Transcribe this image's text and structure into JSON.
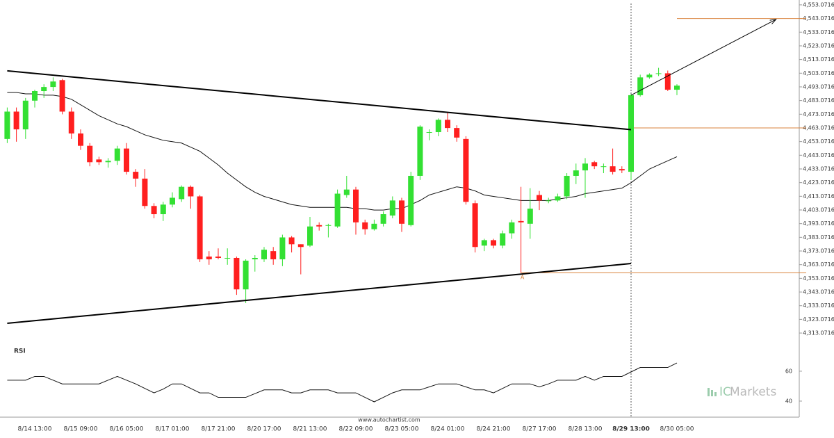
{
  "chart_data": {
    "type": "candlestick",
    "categories": [
      null,
      null,
      null,
      "8/14 13:00",
      null,
      null,
      null,
      null,
      "8/15 09:00",
      null,
      null,
      null,
      null,
      "8/16 05:00",
      null,
      null,
      null,
      null,
      "8/17 01:00",
      null,
      null,
      null,
      null,
      "8/17 21:00",
      null,
      null,
      null,
      null,
      "8/20 17:00",
      null,
      null,
      null,
      null,
      "8/21 13:00",
      null,
      null,
      null,
      null,
      "8/22 09:00",
      null,
      null,
      null,
      null,
      "8/23 05:00",
      null,
      null,
      null,
      null,
      "8/24 01:00",
      null,
      null,
      null,
      null,
      "8/24 21:00",
      null,
      null,
      null,
      null,
      "8/27 17:00",
      null,
      null,
      null,
      null,
      "8/28 13:00",
      null,
      null,
      null,
      null,
      "8/29 13:00",
      null,
      null,
      null,
      null,
      "8/30 05:00"
    ],
    "highlight_category": 68,
    "open": [
      4455,
      4475,
      4462,
      4483,
      4490,
      4493,
      4498,
      4475,
      4459,
      4450,
      4440,
      4438,
      4439,
      4448,
      4431,
      4426,
      4406,
      4400,
      4407,
      4411,
      4420,
      4413,
      4369,
      4369,
      4368,
      4368,
      4345,
      4367,
      4367,
      4373,
      4367,
      4383,
      4378,
      4377,
      4392,
      4392,
      4391,
      4414,
      4418,
      4394,
      4389,
      4393,
      4399,
      4410,
      4392,
      4428,
      4460,
      4460,
      4469,
      4463,
      4455,
      4408,
      4377,
      4381,
      4377,
      4386,
      4395,
      4393,
      4414,
      4410,
      4410,
      4413,
      4428,
      4432,
      4438,
      4435,
      4435,
      4433,
      4431,
      4487,
      4500,
      4503,
      4503,
      4491
    ],
    "high": [
      4478,
      4478,
      4485,
      4491,
      4495,
      4500,
      4499,
      4478,
      4462,
      4452,
      4442,
      4441,
      4450,
      4452,
      4433,
      4433,
      4408,
      4409,
      4416,
      4421,
      4421,
      4414,
      4373,
      4375,
      4375,
      4369,
      4367,
      4370,
      4376,
      4376,
      4385,
      4384,
      4378,
      4398,
      4394,
      4393,
      4418,
      4428,
      4420,
      4396,
      4396,
      4402,
      4413,
      4412,
      4431,
      4465,
      4462,
      4470,
      4474,
      4465,
      4457,
      4410,
      4382,
      4382,
      4388,
      4396,
      4420,
      4419,
      4417,
      4412,
      4415,
      4430,
      4437,
      4441,
      4439,
      4437,
      4448,
      4435,
      4488,
      4502,
      4503,
      4507,
      4505,
      4495
    ],
    "low": [
      4452,
      4453,
      4455,
      4478,
      4485,
      4490,
      4473,
      4455,
      4447,
      4435,
      4436,
      4434,
      4436,
      4429,
      4420,
      4404,
      4397,
      4395,
      4405,
      4409,
      4404,
      4365,
      4363,
      4367,
      4363,
      4341,
      4335,
      4358,
      4365,
      4363,
      4362,
      4372,
      4356,
      4376,
      4388,
      4383,
      4390,
      4412,
      4385,
      4385,
      4388,
      4391,
      4397,
      4387,
      4391,
      4425,
      4454,
      4457,
      4460,
      4453,
      4407,
      4372,
      4373,
      4375,
      4375,
      4382,
      4357,
      4382,
      4403,
      4408,
      4409,
      4411,
      4422,
      4412,
      4433,
      4430,
      4429,
      4430,
      4425,
      4486,
      4499,
      4501,
      4490,
      4487
    ],
    "close": [
      4475,
      4462,
      4483,
      4490,
      4493,
      4497,
      4475,
      4459,
      4450,
      4438,
      4438,
      4439,
      4448,
      4431,
      4426,
      4406,
      4400,
      4407,
      4412,
      4420,
      4413,
      4367,
      4367,
      4368,
      4368,
      4345,
      4366,
      4368,
      4374,
      4367,
      4383,
      4378,
      4376,
      4391,
      4391,
      4392,
      4415,
      4418,
      4394,
      4389,
      4393,
      4400,
      4410,
      4393,
      4428,
      4464,
      4460,
      4469,
      4463,
      4456,
      4409,
      4376,
      4381,
      4377,
      4386,
      4394,
      4394,
      4404,
      4410,
      4410,
      4413,
      4428,
      4432,
      4437,
      4435,
      4435,
      4431,
      4432,
      4487,
      4500,
      4502,
      4503,
      4491,
      4494
    ],
    "up_color": "#33e033",
    "down_color": "#ff1f1f",
    "ma": [
      4489,
      4489,
      4488,
      4488,
      4487,
      4487,
      4486,
      4484,
      4480,
      4476,
      4472,
      4469,
      4466,
      4464,
      4461,
      4458,
      4456,
      4454,
      4453,
      4452,
      4449,
      4446,
      4441,
      4436,
      4430,
      4425,
      4420,
      4416,
      4413,
      4411,
      4409,
      4407,
      4406,
      4405,
      4405,
      4405,
      4405,
      4405,
      4404,
      4404,
      4403,
      4403,
      4404,
      4404,
      4407,
      4410,
      4414,
      4416,
      4418,
      4420,
      4419,
      4417,
      4414,
      4413,
      4412,
      4411,
      4410,
      4410,
      4410,
      4410,
      4411,
      4412,
      4413,
      4415,
      4416,
      4417,
      4418,
      4419,
      4423,
      4428,
      4433,
      4436,
      4439,
      4442
    ],
    "ma_color": "#111111",
    "ylim": [
      4307.5,
      4556.6
    ],
    "yticks": [
      {
        "value": 4313.0716,
        "label": "4,313.0716"
      },
      {
        "value": 4323.0716,
        "label": "4,323.0716"
      },
      {
        "value": 4333.0716,
        "label": "4,333.0716"
      },
      {
        "value": 4343.0716,
        "label": "4,343.0716"
      },
      {
        "value": 4353.0716,
        "label": "4,353.0716"
      },
      {
        "value": 4363.0716,
        "label": "4,363.0716"
      },
      {
        "value": 4373.0716,
        "label": "4,373.0716"
      },
      {
        "value": 4383.0716,
        "label": "4,383.0716"
      },
      {
        "value": 4393.0716,
        "label": "4,393.0716"
      },
      {
        "value": 4403.0716,
        "label": "4,403.0716"
      },
      {
        "value": 4413.0716,
        "label": "4,413.0716"
      },
      {
        "value": 4423.0716,
        "label": "4,423.0716"
      },
      {
        "value": 4433.0716,
        "label": "4,433.0716"
      },
      {
        "value": 4443.0716,
        "label": "4,443.0716"
      },
      {
        "value": 4453.0716,
        "label": "4,453.0716"
      },
      {
        "value": 4463.0716,
        "label": "4,463.0716"
      },
      {
        "value": 4473.0716,
        "label": "4,473.0716"
      },
      {
        "value": 4483.0716,
        "label": "4,483.0716"
      },
      {
        "value": 4493.0716,
        "label": "4,493.0716"
      },
      {
        "value": 4503.0716,
        "label": "4,503.0716"
      },
      {
        "value": 4513.0716,
        "label": "4,513.0716"
      },
      {
        "value": 4523.0716,
        "label": "4,523.0716"
      },
      {
        "value": 4533.0716,
        "label": "4,533.0716"
      },
      {
        "value": 4543.0716,
        "label": "4,543.0716"
      },
      {
        "value": 4553.0716,
        "label": "4,553.0716"
      }
    ],
    "trendlines": [
      {
        "x": [
          0,
          68
        ],
        "values": [
          4504.8,
          4461.8
        ],
        "color": "#000000"
      },
      {
        "x": [
          0,
          68
        ],
        "values": [
          4320.2,
          4363.9
        ],
        "color": "#000000"
      }
    ],
    "arrow": {
      "x": [
        68,
        83.8
      ],
      "values": [
        4487,
        4542.4
      ],
      "color": "#000000"
    },
    "levels": [
      {
        "from": 73,
        "value": 4543.0716,
        "color": "#d9823b"
      },
      {
        "from": 68,
        "value": 4463.0716,
        "color": "#d9823b"
      },
      {
        "from": 56,
        "value": 4357.2,
        "color": "#d9823b"
      }
    ],
    "annotation": {
      "text": "A",
      "x": 56,
      "value": 4357.2
    },
    "rsi": {
      "label": "RSI",
      "values": [
        54,
        54,
        54,
        56.5,
        56.5,
        54,
        51.5,
        51.5,
        51.5,
        51.5,
        51.5,
        54,
        56.5,
        54,
        51.5,
        48.5,
        45.5,
        48,
        51.5,
        51.5,
        48.5,
        45.5,
        45.5,
        42.5,
        42.5,
        42.5,
        42.5,
        45,
        47.5,
        47.5,
        47.5,
        45.5,
        45.5,
        47.5,
        47.5,
        47.5,
        45.5,
        45.5,
        45.5,
        42.5,
        39.5,
        42.5,
        45.5,
        47.5,
        47.5,
        47.5,
        49.5,
        51.5,
        51.5,
        51.5,
        49.5,
        47.5,
        47.5,
        45.5,
        48.5,
        51.5,
        51.5,
        51.5,
        49.5,
        51.5,
        54,
        54,
        54,
        56.5,
        54,
        56.5,
        56.5,
        56.5,
        59.5,
        62.5,
        62.5,
        62.5,
        62.5,
        65.5
      ],
      "ylim": [
        31.6,
        78.1
      ],
      "yticks": [
        60,
        40
      ],
      "color": "#111111"
    },
    "source": "www.autochartist.com",
    "watermark": {
      "brand_prefix": "IC",
      "brand_suffix": "Markets"
    }
  }
}
